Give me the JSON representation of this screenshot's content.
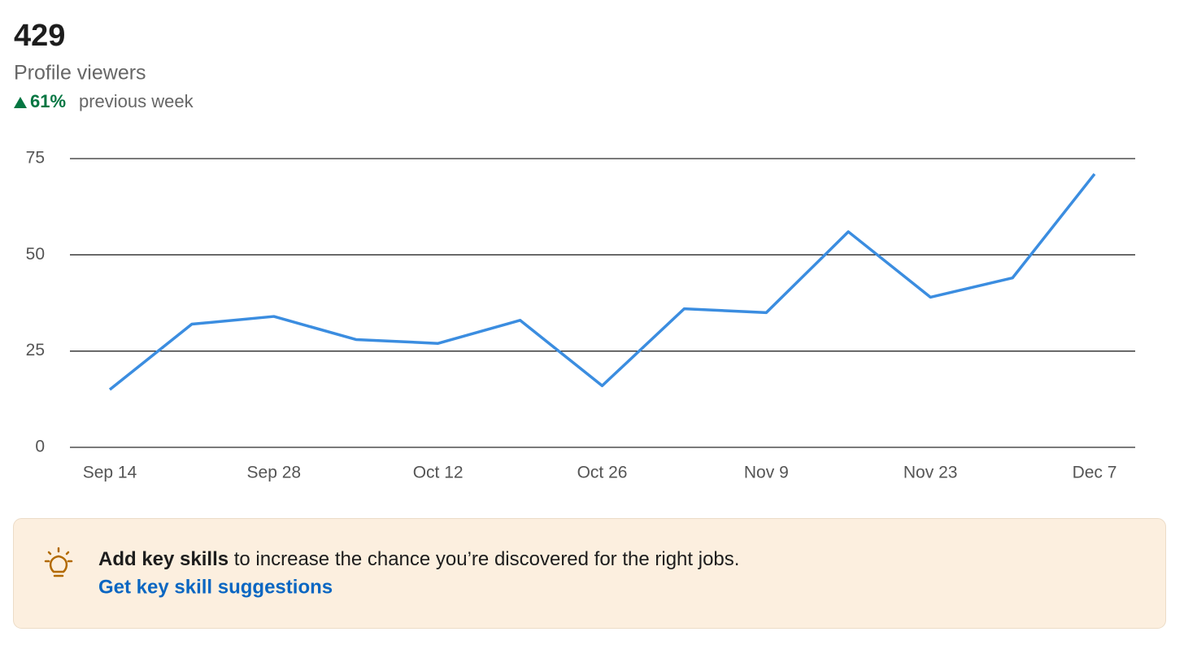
{
  "header": {
    "count": "429",
    "label": "Profile viewers",
    "change": "61%",
    "change_text": "previous week"
  },
  "chart_data": {
    "type": "line",
    "categories": [
      "Sep 14",
      null,
      "Sep 28",
      null,
      "Oct 12",
      null,
      "Oct 26",
      null,
      "Nov 9",
      null,
      "Nov 23",
      null,
      "Dec 7"
    ],
    "series": [
      {
        "name": "Profile viewers",
        "color": "#3b8de0",
        "values": [
          15,
          32,
          34,
          28,
          27,
          33,
          16,
          36,
          35,
          56,
          39,
          44,
          71
        ]
      }
    ],
    "ylim": [
      0,
      75
    ],
    "yticks": [
      0,
      25,
      50,
      75
    ],
    "grid": true
  },
  "banner": {
    "bold": "Add key skills",
    "text": " to increase the chance you’re discovered for the right jobs.",
    "link": "Get key skill suggestions"
  }
}
